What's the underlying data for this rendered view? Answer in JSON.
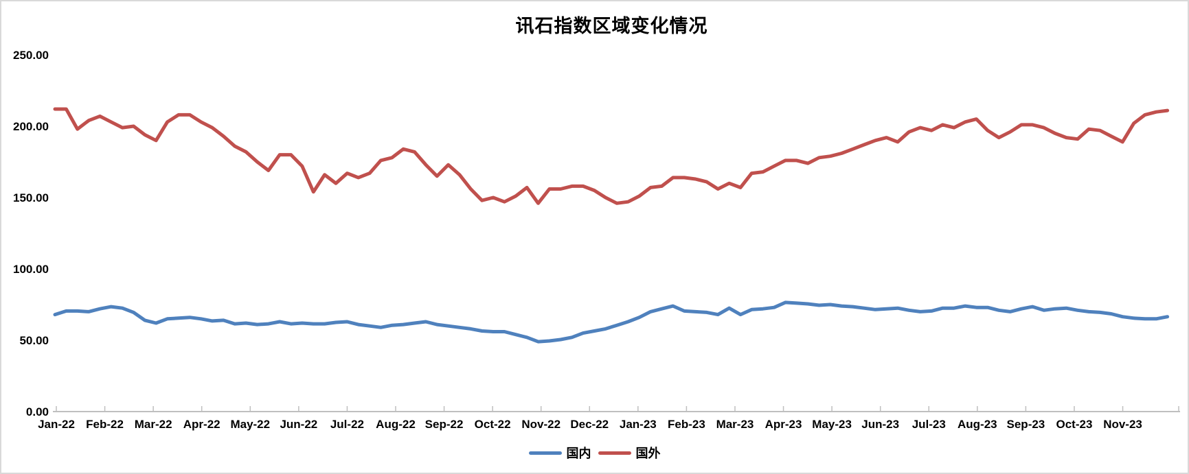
{
  "chart_data": {
    "type": "line",
    "title": "讯石指数区域变化情况",
    "xlabel": "",
    "ylabel": "",
    "ylim": [
      0,
      250
    ],
    "y_ticks": [
      0,
      50,
      100,
      150,
      200,
      250
    ],
    "y_tick_labels": [
      "0.00",
      "50.00",
      "100.00",
      "150.00",
      "200.00",
      "250.00"
    ],
    "grid": false,
    "legend_position": "bottom-center",
    "x_unit": "weekly data points, approx. 100 weeks spanning Jan-2022 to end of Nov-2023",
    "categories": [
      "Jan-22",
      "Feb-22",
      "Mar-22",
      "Apr-22",
      "May-22",
      "Jun-22",
      "Jul-22",
      "Aug-22",
      "Sep-22",
      "Oct-22",
      "Nov-22",
      "Dec-22",
      "Jan-23",
      "Feb-23",
      "Mar-23",
      "Apr-23",
      "May-23",
      "Jun-23",
      "Jul-23",
      "Aug-23",
      "Sep-23",
      "Oct-23",
      "Nov-23"
    ],
    "series": [
      {
        "id": "domestic",
        "name": "国内",
        "color": "#4F81BD",
        "values": [
          68,
          70.5,
          70.5,
          70,
          72,
          73.5,
          72.5,
          69.5,
          64,
          62,
          65,
          65.5,
          66,
          65,
          63.5,
          64,
          61.5,
          62,
          61,
          61.5,
          63,
          61.5,
          62,
          61.5,
          61.5,
          62.5,
          63,
          61,
          60,
          59,
          60.5,
          61,
          62,
          63,
          61,
          60,
          59,
          58,
          56.5,
          56,
          56,
          54,
          52,
          49,
          49.5,
          50.5,
          52,
          55,
          56.5,
          58,
          60.5,
          63,
          66,
          70,
          72,
          74,
          70.5,
          70,
          69.5,
          68,
          72.5,
          68,
          71.5,
          72,
          73,
          76.5,
          76,
          75.5,
          74.5,
          75,
          74,
          73.5,
          72.5,
          71.5,
          72,
          72.5,
          71,
          70,
          70.5,
          72.5,
          72.5,
          74,
          73,
          73,
          71,
          70,
          72,
          73.5,
          71,
          72,
          72.5,
          71,
          70,
          69.5,
          68.5,
          66.5,
          65.5,
          65,
          65,
          66.5
        ]
      },
      {
        "id": "foreign",
        "name": "国外",
        "color": "#C0504D",
        "values": [
          212,
          212,
          198,
          204,
          207,
          203,
          199,
          200,
          194,
          190,
          203,
          208,
          208,
          203,
          199,
          193,
          186,
          182,
          175,
          169,
          180,
          180,
          172,
          154,
          166,
          160,
          167,
          164,
          167,
          176,
          178,
          184,
          182,
          173,
          165,
          173,
          166,
          156,
          148,
          150,
          147,
          151,
          157,
          146,
          156,
          156,
          158,
          158,
          155,
          150,
          146,
          147,
          151,
          157,
          158,
          164,
          164,
          163,
          161,
          156,
          160,
          157,
          167,
          168,
          172,
          176,
          176,
          174,
          178,
          179,
          181,
          184,
          187,
          190,
          192,
          189,
          196,
          199,
          197,
          201,
          199,
          203,
          205,
          197,
          192,
          196,
          201,
          201,
          199,
          195,
          192,
          191,
          198,
          197,
          193,
          189,
          202,
          208,
          210,
          211
        ]
      }
    ]
  }
}
